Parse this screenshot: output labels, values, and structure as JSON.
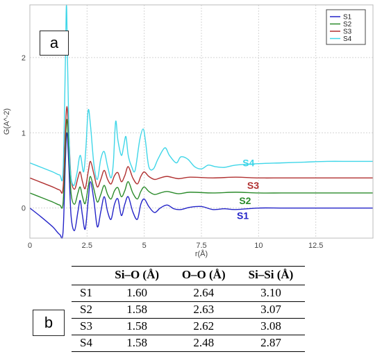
{
  "panels": {
    "a": "a",
    "b": "b"
  },
  "chart_data": {
    "type": "line",
    "xlabel": "r(Å)",
    "ylabel": "G(A^-2)",
    "xlim": [
      0,
      15
    ],
    "ylim": [
      -0.4,
      2.7
    ],
    "x_ticks": [
      "0",
      "2.5",
      "5",
      "7.5",
      "10",
      "12.5"
    ],
    "y_ticks": [
      "0",
      "1",
      "2"
    ],
    "grid": true,
    "legend_position": "top-right",
    "series": [
      {
        "name": "S1",
        "color": "#2323c8",
        "label": "S1",
        "offset": 0.0,
        "points": [
          [
            0,
            0
          ],
          [
            0.5,
            -0.12
          ],
          [
            1.0,
            -0.25
          ],
          [
            1.3,
            -0.35
          ],
          [
            1.45,
            -0.32
          ],
          [
            1.55,
            0.6
          ],
          [
            1.62,
            1.0
          ],
          [
            1.7,
            0.6
          ],
          [
            1.8,
            -0.1
          ],
          [
            1.95,
            -0.3
          ],
          [
            2.1,
            -0.05
          ],
          [
            2.2,
            0.1
          ],
          [
            2.3,
            -0.1
          ],
          [
            2.42,
            -0.28
          ],
          [
            2.55,
            0.1
          ],
          [
            2.65,
            0.35
          ],
          [
            2.8,
            0.1
          ],
          [
            2.95,
            -0.25
          ],
          [
            3.1,
            -0.05
          ],
          [
            3.25,
            0.15
          ],
          [
            3.4,
            -0.05
          ],
          [
            3.55,
            -0.15
          ],
          [
            3.7,
            0.05
          ],
          [
            3.85,
            0.12
          ],
          [
            4.0,
            -0.1
          ],
          [
            4.15,
            0.05
          ],
          [
            4.3,
            0.15
          ],
          [
            4.5,
            -0.05
          ],
          [
            4.7,
            -0.15
          ],
          [
            4.85,
            0.05
          ],
          [
            5.0,
            0.12
          ],
          [
            5.2,
            0.02
          ],
          [
            5.45,
            -0.06
          ],
          [
            5.7,
            0.0
          ],
          [
            6.0,
            0.04
          ],
          [
            6.3,
            -0.01
          ],
          [
            6.6,
            -0.02
          ],
          [
            7.0,
            0.01
          ],
          [
            7.5,
            0.02
          ],
          [
            8.0,
            -0.02
          ],
          [
            8.5,
            -0.01
          ],
          [
            9.0,
            -0.02
          ],
          [
            10,
            0.0
          ],
          [
            11,
            0.0
          ],
          [
            12,
            0.0
          ],
          [
            13,
            0.0
          ],
          [
            14,
            0.0
          ],
          [
            15,
            0.0
          ]
        ]
      },
      {
        "name": "S2",
        "color": "#2a8a2a",
        "label": "S2",
        "offset": 0.2,
        "points": [
          [
            0,
            0
          ],
          [
            0.5,
            -0.06
          ],
          [
            1.0,
            -0.12
          ],
          [
            1.3,
            -0.16
          ],
          [
            1.45,
            -0.14
          ],
          [
            1.55,
            0.6
          ],
          [
            1.62,
            0.98
          ],
          [
            1.7,
            0.6
          ],
          [
            1.8,
            0.0
          ],
          [
            1.95,
            -0.15
          ],
          [
            2.1,
            0.0
          ],
          [
            2.2,
            0.08
          ],
          [
            2.3,
            -0.05
          ],
          [
            2.42,
            -0.14
          ],
          [
            2.55,
            0.08
          ],
          [
            2.65,
            0.22
          ],
          [
            2.8,
            0.05
          ],
          [
            2.95,
            -0.12
          ],
          [
            3.1,
            -0.02
          ],
          [
            3.25,
            0.1
          ],
          [
            3.4,
            -0.02
          ],
          [
            3.55,
            -0.08
          ],
          [
            3.7,
            0.03
          ],
          [
            3.85,
            0.07
          ],
          [
            4.0,
            -0.05
          ],
          [
            4.15,
            0.03
          ],
          [
            4.3,
            0.15
          ],
          [
            4.5,
            0.0
          ],
          [
            4.7,
            -0.08
          ],
          [
            4.85,
            0.02
          ],
          [
            5.0,
            0.08
          ],
          [
            5.2,
            0.02
          ],
          [
            5.45,
            -0.02
          ],
          [
            5.7,
            0.0
          ],
          [
            6.0,
            0.02
          ],
          [
            6.5,
            -0.01
          ],
          [
            7.0,
            0.01
          ],
          [
            8.0,
            0.0
          ],
          [
            9.0,
            0.01
          ],
          [
            10,
            0.0
          ],
          [
            11,
            0.0
          ],
          [
            12,
            0.0
          ],
          [
            13,
            0.0
          ],
          [
            14,
            0.0
          ],
          [
            15,
            0.0
          ]
        ]
      },
      {
        "name": "S3",
        "color": "#b03030",
        "label": "S3",
        "offset": 0.4,
        "points": [
          [
            0,
            0
          ],
          [
            0.5,
            -0.06
          ],
          [
            1.0,
            -0.12
          ],
          [
            1.3,
            -0.16
          ],
          [
            1.45,
            -0.14
          ],
          [
            1.55,
            0.6
          ],
          [
            1.62,
            0.95
          ],
          [
            1.7,
            0.6
          ],
          [
            1.8,
            0.0
          ],
          [
            1.95,
            -0.15
          ],
          [
            2.1,
            0.0
          ],
          [
            2.2,
            0.08
          ],
          [
            2.3,
            -0.05
          ],
          [
            2.42,
            -0.14
          ],
          [
            2.55,
            0.08
          ],
          [
            2.65,
            0.22
          ],
          [
            2.8,
            0.05
          ],
          [
            2.95,
            -0.12
          ],
          [
            3.1,
            -0.02
          ],
          [
            3.25,
            0.1
          ],
          [
            3.4,
            -0.02
          ],
          [
            3.55,
            -0.08
          ],
          [
            3.7,
            0.03
          ],
          [
            3.85,
            0.07
          ],
          [
            4.0,
            -0.05
          ],
          [
            4.15,
            0.03
          ],
          [
            4.3,
            0.15
          ],
          [
            4.5,
            0.0
          ],
          [
            4.7,
            -0.08
          ],
          [
            4.85,
            0.02
          ],
          [
            5.0,
            0.08
          ],
          [
            5.2,
            0.02
          ],
          [
            5.45,
            -0.02
          ],
          [
            5.7,
            0.0
          ],
          [
            6.0,
            0.02
          ],
          [
            6.5,
            -0.01
          ],
          [
            7.0,
            0.01
          ],
          [
            8.0,
            0.0
          ],
          [
            9.0,
            0.01
          ],
          [
            10,
            0.0
          ],
          [
            11,
            0.0
          ],
          [
            12,
            0.0
          ],
          [
            13,
            0.0
          ],
          [
            14,
            0.0
          ],
          [
            15,
            0.0
          ]
        ]
      },
      {
        "name": "S4",
        "color": "#3fd6e8",
        "label": "S4",
        "offset": 0.6,
        "points": [
          [
            0,
            0.0
          ],
          [
            0.5,
            -0.06
          ],
          [
            1.0,
            -0.12
          ],
          [
            1.3,
            -0.16
          ],
          [
            1.45,
            -0.12
          ],
          [
            1.55,
            1.3
          ],
          [
            1.6,
            2.1
          ],
          [
            1.65,
            1.3
          ],
          [
            1.75,
            0.0
          ],
          [
            1.9,
            -0.3
          ],
          [
            2.05,
            -0.15
          ],
          [
            2.2,
            0.1
          ],
          [
            2.35,
            -0.12
          ],
          [
            2.45,
            0.2
          ],
          [
            2.55,
            0.7
          ],
          [
            2.65,
            0.5
          ],
          [
            2.8,
            -0.02
          ],
          [
            2.95,
            -0.22
          ],
          [
            3.1,
            0.05
          ],
          [
            3.25,
            0.15
          ],
          [
            3.4,
            -0.05
          ],
          [
            3.55,
            -0.2
          ],
          [
            3.65,
            0.0
          ],
          [
            3.75,
            0.55
          ],
          [
            3.85,
            0.3
          ],
          [
            4.0,
            0.1
          ],
          [
            4.1,
            0.22
          ],
          [
            4.2,
            0.35
          ],
          [
            4.3,
            0.1
          ],
          [
            4.45,
            -0.05
          ],
          [
            4.6,
            -0.1
          ],
          [
            4.8,
            0.3
          ],
          [
            4.95,
            0.45
          ],
          [
            5.05,
            0.3
          ],
          [
            5.2,
            -0.05
          ],
          [
            5.4,
            -0.08
          ],
          [
            5.6,
            0.05
          ],
          [
            5.9,
            0.2
          ],
          [
            6.1,
            0.1
          ],
          [
            6.4,
            0.0
          ],
          [
            6.6,
            0.08
          ],
          [
            6.9,
            0.05
          ],
          [
            7.2,
            -0.05
          ],
          [
            7.5,
            -0.08
          ],
          [
            7.8,
            -0.03
          ],
          [
            8.1,
            -0.05
          ],
          [
            8.5,
            -0.06
          ],
          [
            9.0,
            -0.03
          ],
          [
            10,
            -0.01
          ],
          [
            11,
            0.0
          ],
          [
            12,
            0.01
          ],
          [
            13,
            0.02
          ],
          [
            14,
            0.02
          ],
          [
            15,
            0.02
          ]
        ]
      }
    ]
  },
  "table": {
    "headers": [
      "",
      "Si–O (Å)",
      "O–O (Å)",
      "Si–Si (Å)"
    ],
    "rows": [
      [
        "S1",
        "1.60",
        "2.64",
        "3.10"
      ],
      [
        "S2",
        "1.58",
        "2.63",
        "3.07"
      ],
      [
        "S3",
        "1.58",
        "2.62",
        "3.08"
      ],
      [
        "S4",
        "1.58",
        "2.48",
        "2.87"
      ]
    ]
  }
}
